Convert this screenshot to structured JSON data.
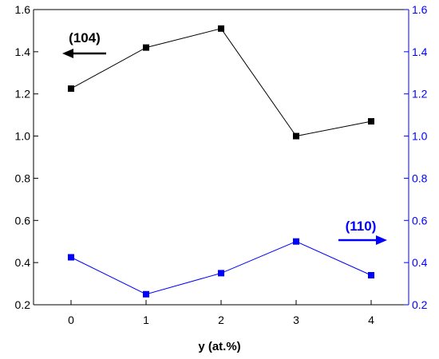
{
  "chart_data": {
    "type": "line",
    "title": "",
    "xlabel": "y (at.%)",
    "x": [
      0,
      1,
      2,
      3,
      4
    ],
    "xticks": [
      "0",
      "1",
      "2",
      "3",
      "4"
    ],
    "xlim": [
      -0.5,
      4.5
    ],
    "y_left": {
      "ylim": [
        0.2,
        1.6
      ],
      "ticks": [
        "0.2",
        "0.4",
        "0.6",
        "0.8",
        "1.0",
        "1.2",
        "1.4",
        "1.6"
      ],
      "color": "#000000"
    },
    "y_right": {
      "ylim": [
        0.2,
        1.6
      ],
      "ticks": [
        "0.2",
        "0.4",
        "0.6",
        "0.8",
        "1.0",
        "1.2",
        "1.4",
        "1.6"
      ],
      "color": "#0000ff"
    },
    "series": [
      {
        "axis": "left",
        "values": [
          1.225,
          1.42,
          1.51,
          1.0,
          1.07
        ],
        "color": "#000000",
        "marker": "square"
      },
      {
        "axis": "right",
        "values": [
          0.425,
          0.25,
          0.35,
          0.5,
          0.34
        ],
        "color": "#0000ff",
        "marker": "square"
      }
    ],
    "annotations": [
      {
        "text": "(104)",
        "color": "#000000",
        "arrow": "left"
      },
      {
        "text": "(110)",
        "color": "#0000ff",
        "arrow": "right"
      }
    ],
    "grid": false
  }
}
